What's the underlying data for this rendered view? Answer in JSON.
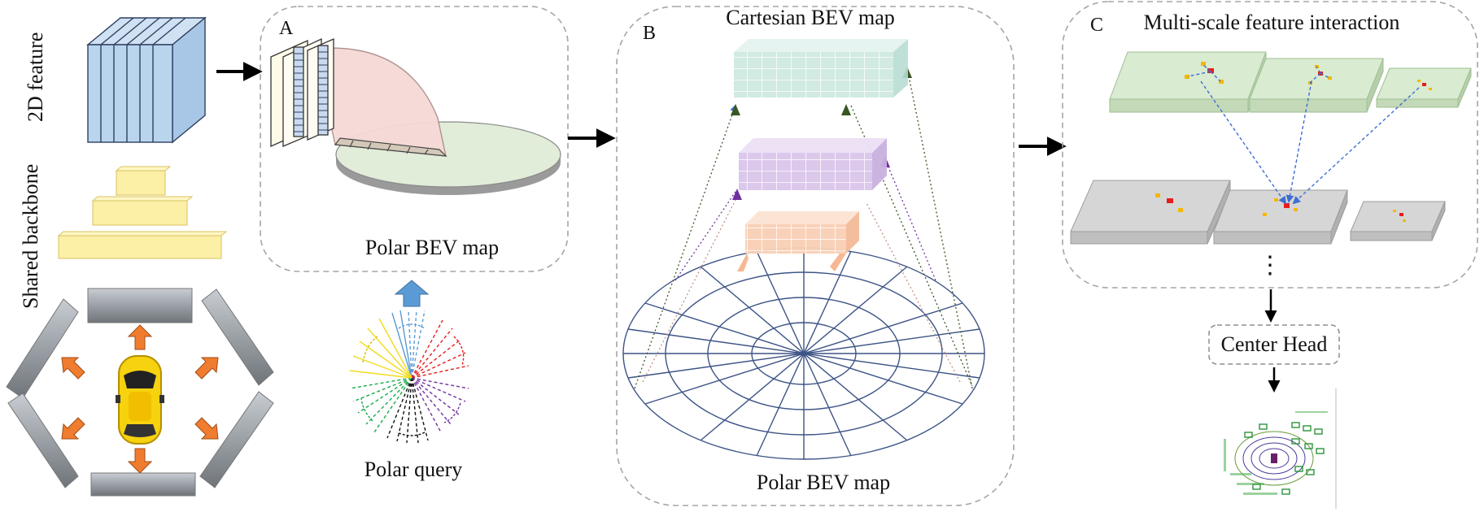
{
  "labels": {
    "feature_2d": "2D feature",
    "shared_backbone": "Shared backbone",
    "panel_a_letter": "A",
    "panel_a_caption": "Polar BEV map",
    "polar_query": "Polar query",
    "panel_b_letter": "B",
    "cartesian_bev": "Cartesian BEV map",
    "polar_bev_b": "Polar BEV map",
    "panel_c_letter": "C",
    "multi_scale": "Multi-scale feature interaction",
    "center_head": "Center Head",
    "ellipsis": "⋮"
  },
  "colors": {
    "feature_blue": "#b9d5ee",
    "backbone_yellow": "#fbf0a6",
    "polar_pink": "#f6d9d6",
    "polar_green": "#e1ecd9",
    "cart_teal": "#cce8df",
    "cart_purple": "#d9c5ea",
    "cart_orange": "#f9cfb4",
    "grid_navy": "#3d5486",
    "plane_green": "#d9ebd0",
    "plane_gray": "#d6d6d6",
    "arrow_orange": "#ef7c2f",
    "arrow_blue": "#5b9bd5",
    "car_yellow": "#f6d20f"
  }
}
